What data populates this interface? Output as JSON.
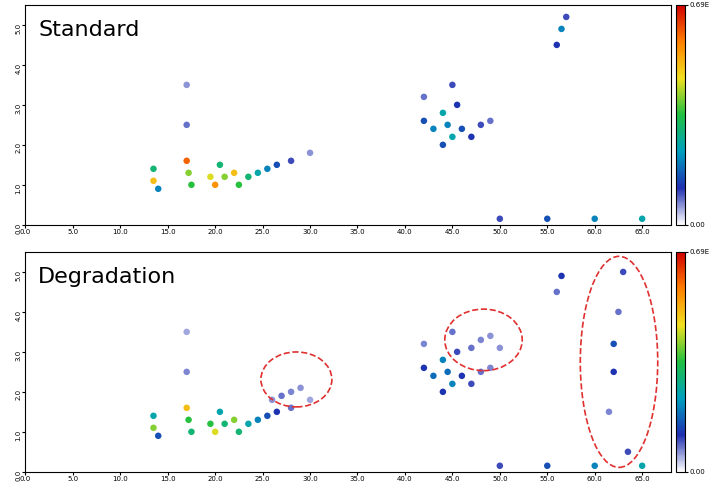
{
  "chart_data": [
    {
      "type": "scatter",
      "title": "Standard",
      "xlim": [
        0,
        68
      ],
      "ylim": [
        0,
        5.5
      ],
      "xticks": [
        {
          "value": 0,
          "label": "0.0"
        },
        {
          "value": 5,
          "label": "5.0"
        },
        {
          "value": 10,
          "label": "10.0"
        },
        {
          "value": 15,
          "label": "15.0"
        },
        {
          "value": 20,
          "label": "20.0"
        },
        {
          "value": 25,
          "label": "25.0"
        },
        {
          "value": 30,
          "label": "30.0"
        },
        {
          "value": 35,
          "label": "35.0"
        },
        {
          "value": 40,
          "label": "40.0"
        },
        {
          "value": 45,
          "label": "45.0"
        },
        {
          "value": 50,
          "label": "50.0"
        },
        {
          "value": 55,
          "label": "55.0"
        },
        {
          "value": 60,
          "label": "60.0"
        },
        {
          "value": 65,
          "label": "65.0"
        }
      ],
      "yticks": [
        {
          "value": 0,
          "label": "0.0"
        },
        {
          "value": 1,
          "label": "1.0"
        },
        {
          "value": 2,
          "label": "2.0"
        },
        {
          "value": 3,
          "label": "3.0"
        },
        {
          "value": 4,
          "label": "4.0"
        },
        {
          "value": 5,
          "label": "5.0"
        }
      ],
      "colorbar": {
        "range": [
          0,
          0.69
        ],
        "ticks": [
          {
            "value": 0,
            "label": "0.00"
          },
          {
            "value": 0.69,
            "label": "0.69E"
          }
        ]
      },
      "peaks": [
        [
          13.5,
          1.4,
          0.3
        ],
        [
          13.5,
          1.1,
          0.5
        ],
        [
          14,
          0.9,
          0.2
        ],
        [
          17,
          1.6,
          0.6
        ],
        [
          17.2,
          1.3,
          0.4
        ],
        [
          17.5,
          1.0,
          0.35
        ],
        [
          17,
          2.5,
          0.08
        ],
        [
          17,
          3.5,
          0.06
        ],
        [
          19.5,
          1.2,
          0.45
        ],
        [
          20,
          1.0,
          0.55
        ],
        [
          20.5,
          1.5,
          0.3
        ],
        [
          21,
          1.2,
          0.4
        ],
        [
          22,
          1.3,
          0.5
        ],
        [
          22.5,
          1.0,
          0.35
        ],
        [
          23.5,
          1.2,
          0.3
        ],
        [
          24.5,
          1.3,
          0.25
        ],
        [
          25.5,
          1.4,
          0.2
        ],
        [
          26.5,
          1.5,
          0.15
        ],
        [
          28,
          1.6,
          0.1
        ],
        [
          30,
          1.8,
          0.06
        ],
        [
          42,
          2.6,
          0.15
        ],
        [
          42,
          3.2,
          0.08
        ],
        [
          43,
          2.4,
          0.2
        ],
        [
          44,
          2.8,
          0.25
        ],
        [
          44.5,
          2.5,
          0.2
        ],
        [
          45,
          2.2,
          0.25
        ],
        [
          45.5,
          3.0,
          0.12
        ],
        [
          46,
          2.4,
          0.15
        ],
        [
          47,
          2.2,
          0.12
        ],
        [
          48,
          2.5,
          0.1
        ],
        [
          49,
          2.6,
          0.08
        ],
        [
          45,
          3.5,
          0.1
        ],
        [
          44,
          2.0,
          0.15
        ],
        [
          56.5,
          4.9,
          0.2
        ],
        [
          56,
          4.5,
          0.12
        ],
        [
          57,
          5.2,
          0.1
        ],
        [
          50,
          0.15,
          0.1
        ],
        [
          55,
          0.15,
          0.15
        ],
        [
          60,
          0.15,
          0.2
        ],
        [
          65,
          0.15,
          0.25
        ]
      ]
    },
    {
      "type": "scatter",
      "title": "Degradation",
      "xlim": [
        0,
        68
      ],
      "ylim": [
        0,
        5.5
      ],
      "xticks": [
        {
          "value": 0,
          "label": "0.0"
        },
        {
          "value": 5,
          "label": "5.0"
        },
        {
          "value": 10,
          "label": "10.0"
        },
        {
          "value": 15,
          "label": "15.0"
        },
        {
          "value": 20,
          "label": "20.0"
        },
        {
          "value": 25,
          "label": "25.0"
        },
        {
          "value": 30,
          "label": "30.0"
        },
        {
          "value": 35,
          "label": "35.0"
        },
        {
          "value": 40,
          "label": "40.0"
        },
        {
          "value": 45,
          "label": "45.0"
        },
        {
          "value": 50,
          "label": "50.0"
        },
        {
          "value": 55,
          "label": "55.0"
        },
        {
          "value": 60,
          "label": "60.0"
        },
        {
          "value": 65,
          "label": "65.0"
        }
      ],
      "yticks": [
        {
          "value": 0,
          "label": "0.0"
        },
        {
          "value": 1,
          "label": "1.0"
        },
        {
          "value": 2,
          "label": "2.0"
        },
        {
          "value": 3,
          "label": "3.0"
        },
        {
          "value": 4,
          "label": "4.0"
        },
        {
          "value": 5,
          "label": "5.0"
        }
      ],
      "colorbar": {
        "range": [
          0,
          0.69
        ],
        "ticks": [
          {
            "value": 0,
            "label": "0.00"
          },
          {
            "value": 0.69,
            "label": "0.69E"
          }
        ]
      },
      "peaks": [
        [
          13.5,
          1.4,
          0.25
        ],
        [
          13.5,
          1.1,
          0.4
        ],
        [
          14,
          0.9,
          0.15
        ],
        [
          17,
          1.6,
          0.5
        ],
        [
          17.2,
          1.3,
          0.35
        ],
        [
          17.5,
          1.0,
          0.3
        ],
        [
          17,
          2.5,
          0.07
        ],
        [
          17,
          3.5,
          0.05
        ],
        [
          19.5,
          1.2,
          0.35
        ],
        [
          20,
          1.0,
          0.45
        ],
        [
          20.5,
          1.5,
          0.25
        ],
        [
          21,
          1.2,
          0.3
        ],
        [
          22,
          1.3,
          0.4
        ],
        [
          22.5,
          1.0,
          0.3
        ],
        [
          23.5,
          1.2,
          0.25
        ],
        [
          24.5,
          1.3,
          0.2
        ],
        [
          25.5,
          1.4,
          0.15
        ],
        [
          26.5,
          1.5,
          0.12
        ],
        [
          28,
          1.6,
          0.08
        ],
        [
          30,
          1.8,
          0.05
        ],
        [
          26,
          1.8,
          0.06
        ],
        [
          27,
          1.9,
          0.08
        ],
        [
          28,
          2.0,
          0.07
        ],
        [
          29,
          2.1,
          0.06
        ],
        [
          42,
          2.6,
          0.12
        ],
        [
          42,
          3.2,
          0.07
        ],
        [
          43,
          2.4,
          0.18
        ],
        [
          44,
          2.8,
          0.2
        ],
        [
          44.5,
          2.5,
          0.18
        ],
        [
          45,
          2.2,
          0.2
        ],
        [
          45.5,
          3.0,
          0.1
        ],
        [
          46,
          2.4,
          0.12
        ],
        [
          47,
          2.2,
          0.1
        ],
        [
          48,
          2.5,
          0.08
        ],
        [
          49,
          2.6,
          0.07
        ],
        [
          45,
          3.5,
          0.08
        ],
        [
          44,
          2.0,
          0.12
        ],
        [
          47,
          3.1,
          0.08
        ],
        [
          48,
          3.3,
          0.07
        ],
        [
          49,
          3.4,
          0.06
        ],
        [
          50,
          3.1,
          0.06
        ],
        [
          56.5,
          4.9,
          0.12
        ],
        [
          56,
          4.5,
          0.08
        ],
        [
          61.5,
          1.5,
          0.07
        ],
        [
          62,
          2.5,
          0.12
        ],
        [
          62,
          3.2,
          0.15
        ],
        [
          62.5,
          4.0,
          0.08
        ],
        [
          63,
          5.0,
          0.1
        ],
        [
          63.5,
          0.5,
          0.1
        ],
        [
          50,
          0.15,
          0.1
        ],
        [
          55,
          0.15,
          0.15
        ],
        [
          60,
          0.15,
          0.2
        ],
        [
          65,
          0.15,
          0.25
        ]
      ]
    }
  ]
}
